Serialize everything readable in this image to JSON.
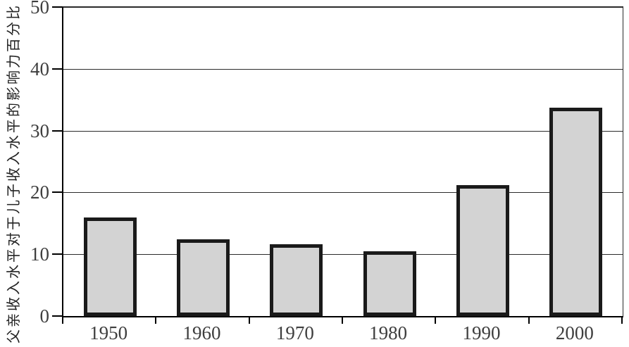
{
  "chart_data": {
    "type": "bar",
    "title": "",
    "xlabel": "",
    "ylabel": "父亲收入水平对于儿子收入水平的影响力百分比",
    "categories": [
      "1950",
      "1960",
      "1970",
      "1980",
      "1990",
      "2000"
    ],
    "values": [
      16.0,
      12.4,
      11.6,
      10.5,
      21.2,
      33.7
    ],
    "ylim": [
      0,
      50
    ],
    "yticks": [
      0,
      10,
      20,
      30,
      40,
      50
    ],
    "grid": "horizontal",
    "legend": "none",
    "colors": {
      "bar_fill": "#d3d3d3",
      "bar_border": "#1a1a1a",
      "gridline": "#2a2a2a",
      "axis": "#000000",
      "tick_label": "#3e3e3e",
      "background": "#ffffff"
    }
  }
}
